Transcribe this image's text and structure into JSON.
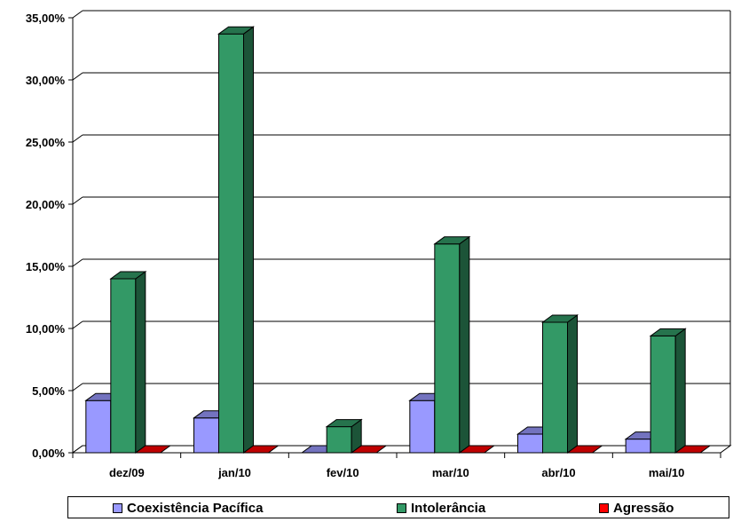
{
  "chart_data": {
    "type": "bar",
    "categories": [
      "dez/09",
      "jan/10",
      "fev/10",
      "mar/10",
      "abr/10",
      "mai/10"
    ],
    "series": [
      {
        "name": "Coexistência Pacífica",
        "color": "#9999FF",
        "values": [
          4.2,
          2.8,
          0.0,
          4.2,
          1.5,
          1.1
        ]
      },
      {
        "name": "Intolerância",
        "color": "#339966",
        "values": [
          14.0,
          33.7,
          2.1,
          16.8,
          10.5,
          9.4
        ]
      },
      {
        "name": "Agressão",
        "color": "#FF0000",
        "values": [
          0.0,
          0.0,
          0.0,
          0.0,
          0.0,
          0.0
        ]
      }
    ],
    "yticks": [
      "0,00%",
      "5,00%",
      "10,00%",
      "15,00%",
      "20,00%",
      "25,00%",
      "30,00%",
      "35,00%"
    ],
    "ylim": [
      0,
      35
    ],
    "grid": true,
    "legend_position": "bottom"
  }
}
